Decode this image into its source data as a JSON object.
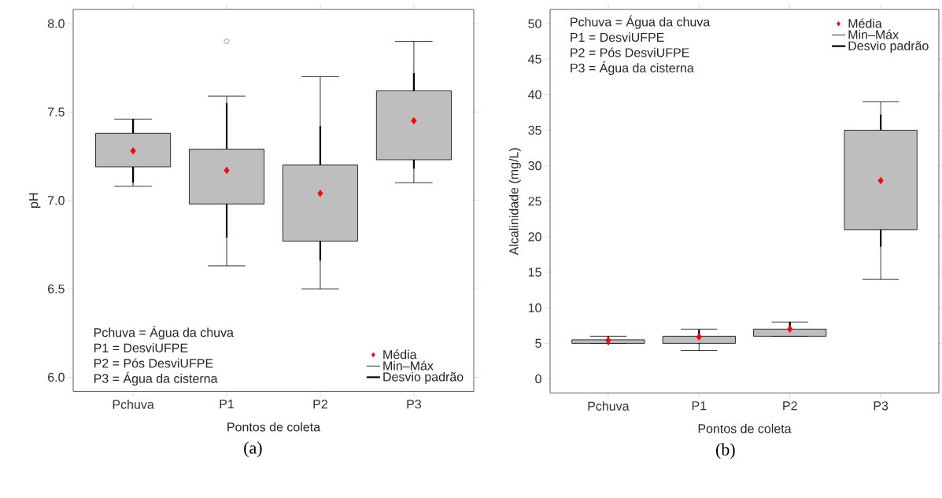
{
  "chart_data": [
    {
      "type": "box",
      "subtitle": "(a)",
      "xlabel": "Pontos de coleta",
      "ylabel": "pH",
      "categories": [
        "Pchuva",
        "P1",
        "P2",
        "P3"
      ],
      "ylim": [
        5.92,
        8.08
      ],
      "yticks": [
        {
          "value": 6,
          "label": "6.0"
        },
        {
          "value": 6.5,
          "label": "6.5"
        },
        {
          "value": 7,
          "label": "7.0"
        },
        {
          "value": 7.5,
          "label": "7.5"
        },
        {
          "value": 8,
          "label": "8.0"
        }
      ],
      "legend": "bottom right",
      "grid": false,
      "annotations": [
        "Pchuva = Água da chuva",
        "P1 = DesviUFPE",
        "P2 = Pós DesviUFPE",
        "P3 = Água da cisterna",
        "Min–Máx",
        "Desvio padrão"
      ],
      "series": [
        {
          "type": "scatter",
          "name": "Média",
          "color": "#ff0000",
          "marker": "diamond",
          "values": [
            7.28,
            7.17,
            7.04,
            7.45
          ],
          "errors": [
            0.18,
            0.38,
            0.38,
            0.27
          ]
        },
        {
          "type": "box",
          "color": "#bebebe",
          "boxes": [
            {
              "low": 7.08,
              "q1": 7.19,
              "median": null,
              "q3": 7.38,
              "high": 7.46
            },
            {
              "low": 6.63,
              "q1": 6.98,
              "median": null,
              "q3": 7.29,
              "high": 7.59,
              "outliers": [
                7.9
              ]
            },
            {
              "low": 6.5,
              "q1": 6.77,
              "median": null,
              "q3": 7.2,
              "high": 7.7
            },
            {
              "low": 7.1,
              "q1": 7.23,
              "median": null,
              "q3": 7.62,
              "high": 7.9
            }
          ]
        }
      ]
    },
    {
      "type": "box",
      "subtitle": "(b)",
      "xlabel": "Pontos de coleta",
      "ylabel": "Alcalinidade (mg/L)",
      "categories": [
        "Pchuva",
        "P1",
        "P2",
        "P3"
      ],
      "ylim": [
        -2,
        52
      ],
      "yticks": [
        0,
        5,
        10,
        15,
        20,
        25,
        30,
        35,
        40,
        45,
        50
      ],
      "legend": "top right",
      "grid": false,
      "annotations": [
        "Pchuva = Água da chuva",
        "P1 = DesviUFPE",
        "P2 = Pós DesviUFPE",
        "P3 = Água da cisterna",
        "Min–Máx",
        "Desvio padrão"
      ],
      "series": [
        {
          "type": "scatter",
          "name": "Média",
          "color": "#ff0000",
          "marker": "diamond",
          "values": [
            5.4,
            5.9,
            7,
            27.9
          ],
          "errors": [
            0.6,
            1,
            1,
            9.3
          ]
        },
        {
          "type": "box",
          "color": "#bebebe",
          "boxes": [
            {
              "low": 5,
              "q1": 5,
              "median": null,
              "q3": 5.5,
              "high": 6
            },
            {
              "low": 4,
              "q1": 5,
              "median": null,
              "q3": 6,
              "high": 7
            },
            {
              "low": 6,
              "q1": 6,
              "median": null,
              "q3": 7,
              "high": 8
            },
            {
              "low": 14,
              "q1": 21,
              "median": null,
              "q3": 35,
              "high": 39
            }
          ]
        }
      ]
    }
  ]
}
